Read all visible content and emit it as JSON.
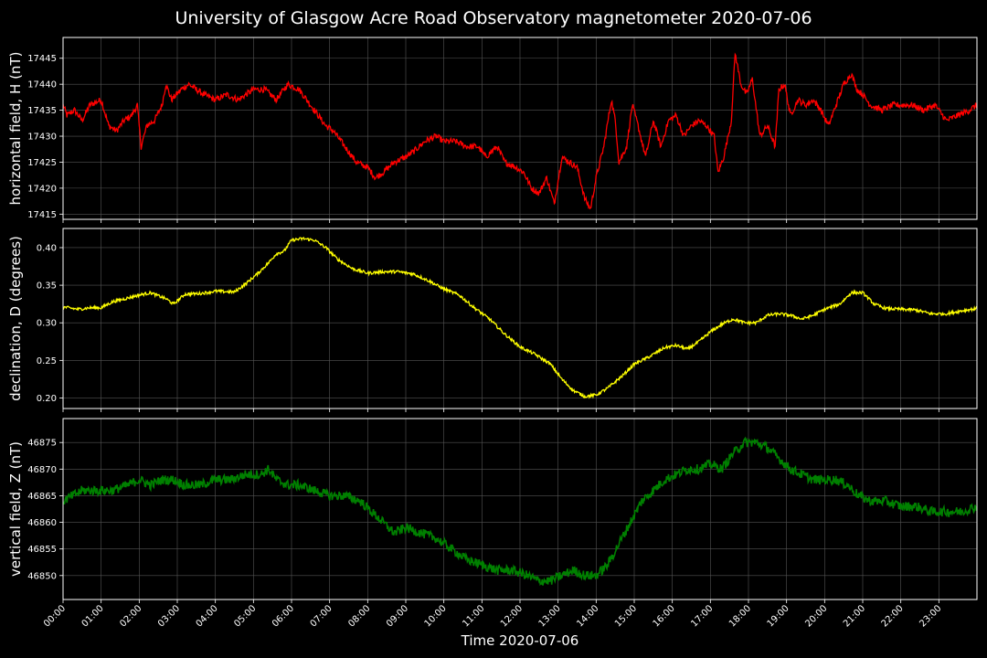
{
  "chart_data": {
    "type": "line",
    "title": "University of Glasgow Acre Road Observatory magnetometer 2020-07-06",
    "xlabel": "Time 2020-07-06",
    "x_tick_labels": [
      "00:00",
      "01:00",
      "02:00",
      "03:00",
      "04:00",
      "05:00",
      "06:00",
      "07:00",
      "08:00",
      "09:00",
      "10:00",
      "11:00",
      "12:00",
      "13:00",
      "14:00",
      "15:00",
      "16:00",
      "17:00",
      "18:00",
      "19:00",
      "20:00",
      "21:00",
      "22:00",
      "23:00"
    ],
    "xlim_hours": [
      0,
      24
    ],
    "grid": true,
    "background": "#000000",
    "grid_color": "#555555",
    "panels": [
      {
        "ylabel": "horizontal field, H (nT)",
        "color": "#ff0000",
        "ylim": [
          17414,
          17449
        ],
        "y_ticks": [
          17415,
          17420,
          17425,
          17430,
          17435,
          17440,
          17445
        ],
        "tick_decimals": 0,
        "noise": 0.6,
        "x": [
          0,
          0.1,
          0.3,
          0.5,
          0.7,
          1.0,
          1.2,
          1.4,
          1.6,
          1.8,
          1.95,
          2.05,
          2.2,
          2.4,
          2.6,
          2.7,
          2.85,
          3.1,
          3.3,
          3.5,
          3.7,
          4.0,
          4.3,
          4.6,
          5.0,
          5.3,
          5.6,
          5.9,
          6.2,
          6.4,
          6.7,
          6.9,
          7.1,
          7.4,
          7.7,
          8.0,
          8.2,
          8.4,
          8.7,
          9.0,
          9.2,
          9.5,
          9.8,
          10.0,
          10.3,
          10.6,
          10.9,
          11.1,
          11.4,
          11.6,
          11.9,
          12.1,
          12.3,
          12.5,
          12.7,
          12.9,
          13.1,
          13.3,
          13.5,
          13.7,
          13.85,
          14.0,
          14.2,
          14.4,
          14.5,
          14.6,
          14.8,
          14.95,
          15.1,
          15.3,
          15.5,
          15.7,
          15.9,
          16.1,
          16.3,
          16.5,
          16.7,
          16.9,
          17.0,
          17.1,
          17.2,
          17.35,
          17.55,
          17.65,
          17.8,
          17.95,
          18.1,
          18.3,
          18.5,
          18.7,
          18.8,
          18.95,
          19.1,
          19.3,
          19.5,
          19.7,
          19.9,
          20.1,
          20.3,
          20.5,
          20.7,
          20.85,
          21.0,
          21.2,
          21.5,
          21.8,
          22.0,
          22.3,
          22.6,
          22.9,
          23.2,
          23.5,
          23.8,
          24.0
        ],
        "y": [
          17436,
          17434,
          17435,
          17433,
          17436,
          17437,
          17432,
          17431,
          17433,
          17434,
          17436,
          17428,
          17432,
          17433,
          17436,
          17440,
          17437,
          17439,
          17440,
          17439,
          17438,
          17437,
          17438,
          17437,
          17439,
          17439,
          17437,
          17440,
          17439,
          17437,
          17434,
          17432,
          17431,
          17428,
          17425,
          17424,
          17422,
          17423,
          17425,
          17426,
          17427,
          17429,
          17430,
          17429,
          17429,
          17428,
          17428,
          17426,
          17428,
          17425,
          17424,
          17423,
          17420,
          17419,
          17422,
          17417,
          17426,
          17425,
          17424,
          17418,
          17416,
          17422,
          17428,
          17437,
          17433,
          17425,
          17428,
          17436,
          17432,
          17426,
          17433,
          17428,
          17433,
          17434,
          17430,
          17432,
          17433,
          17432,
          17431,
          17430,
          17423,
          17426,
          17433,
          17446,
          17440,
          17438,
          17441,
          17430,
          17432,
          17428,
          17439,
          17440,
          17434,
          17437,
          17436,
          17437,
          17435,
          17432,
          17436,
          17440,
          17442,
          17439,
          17438,
          17436,
          17435,
          17436,
          17436,
          17436,
          17435,
          17436,
          17433,
          17434,
          17435,
          17436
        ]
      },
      {
        "ylabel": "declination, D (degrees)",
        "color": "#ffff00",
        "ylim": [
          0.186,
          0.4255
        ],
        "y_ticks": [
          0.2,
          0.25,
          0.3,
          0.35,
          0.4
        ],
        "tick_decimals": 2,
        "noise": 0.002,
        "x": [
          0,
          0.4,
          0.7,
          1.0,
          1.3,
          1.7,
          2.0,
          2.3,
          2.7,
          2.9,
          3.2,
          3.6,
          4.0,
          4.5,
          4.8,
          5.1,
          5.4,
          5.6,
          5.8,
          6.0,
          6.3,
          6.6,
          6.9,
          7.2,
          7.6,
          8.0,
          8.4,
          8.8,
          9.2,
          9.6,
          10.0,
          10.4,
          10.8,
          11.2,
          11.6,
          12.0,
          12.4,
          12.8,
          13.1,
          13.4,
          13.7,
          14.0,
          14.3,
          14.7,
          15.0,
          15.4,
          15.8,
          16.1,
          16.4,
          16.7,
          17.0,
          17.3,
          17.6,
          17.9,
          18.2,
          18.5,
          18.8,
          19.1,
          19.4,
          19.7,
          20.0,
          20.4,
          20.7,
          21.0,
          21.3,
          21.6,
          22.0,
          22.4,
          22.8,
          23.2,
          23.6,
          24.0
        ],
        "y": [
          0.321,
          0.318,
          0.32,
          0.32,
          0.328,
          0.333,
          0.337,
          0.34,
          0.332,
          0.325,
          0.338,
          0.339,
          0.342,
          0.341,
          0.352,
          0.365,
          0.38,
          0.392,
          0.395,
          0.41,
          0.412,
          0.41,
          0.4,
          0.385,
          0.372,
          0.366,
          0.368,
          0.368,
          0.365,
          0.356,
          0.345,
          0.337,
          0.32,
          0.305,
          0.285,
          0.268,
          0.258,
          0.245,
          0.225,
          0.21,
          0.202,
          0.204,
          0.213,
          0.23,
          0.245,
          0.255,
          0.267,
          0.27,
          0.265,
          0.275,
          0.288,
          0.298,
          0.305,
          0.3,
          0.3,
          0.31,
          0.312,
          0.31,
          0.305,
          0.31,
          0.318,
          0.325,
          0.34,
          0.34,
          0.325,
          0.319,
          0.318,
          0.317,
          0.312,
          0.312,
          0.316,
          0.319
        ]
      },
      {
        "ylabel": "vertical field, Z (nT)",
        "color": "#008000",
        "ylim": [
          46845.5,
          46879.5
        ],
        "y_ticks": [
          46850,
          46855,
          46860,
          46865,
          46870,
          46875
        ],
        "tick_decimals": 0,
        "noise": 0.9,
        "x": [
          0,
          0.5,
          1.0,
          1.3,
          1.7,
          2.0,
          2.3,
          2.6,
          2.9,
          3.2,
          3.6,
          4.0,
          4.4,
          4.8,
          5.2,
          5.4,
          5.6,
          5.9,
          6.2,
          6.6,
          7.0,
          7.4,
          7.8,
          8.1,
          8.4,
          8.7,
          9.0,
          9.4,
          9.8,
          10.2,
          10.6,
          11.0,
          11.4,
          11.8,
          12.2,
          12.5,
          12.8,
          13.1,
          13.4,
          13.7,
          14.0,
          14.3,
          14.6,
          14.9,
          15.2,
          15.5,
          15.8,
          16.1,
          16.4,
          16.7,
          17.0,
          17.3,
          17.6,
          17.9,
          18.2,
          18.5,
          18.8,
          19.1,
          19.4,
          19.7,
          20.0,
          20.3,
          20.6,
          20.9,
          21.2,
          21.6,
          22.0,
          22.4,
          22.8,
          23.2,
          23.6,
          24.0
        ],
        "y": [
          46864,
          46866,
          46866,
          46866,
          46867,
          46868,
          46867,
          46868,
          46868,
          46867,
          46867,
          46868,
          46868,
          46869,
          46869,
          46870,
          46868,
          46867,
          46867,
          46866,
          46865,
          46865,
          46864,
          46862,
          46860,
          46858,
          46859,
          46858,
          46857,
          46855,
          46853,
          46852,
          46851,
          46851,
          46850,
          46849,
          46849,
          46850,
          46851,
          46850,
          46850,
          46852,
          46856,
          46860,
          46864,
          46866,
          46868,
          46869,
          46870,
          46870,
          46871,
          46870,
          46873,
          46875,
          46875,
          46874,
          46872,
          46870,
          46869,
          46868,
          46868,
          46868,
          46867,
          46865,
          46864,
          46864,
          46863,
          46863,
          46862,
          46862,
          46862,
          46863
        ]
      }
    ]
  }
}
